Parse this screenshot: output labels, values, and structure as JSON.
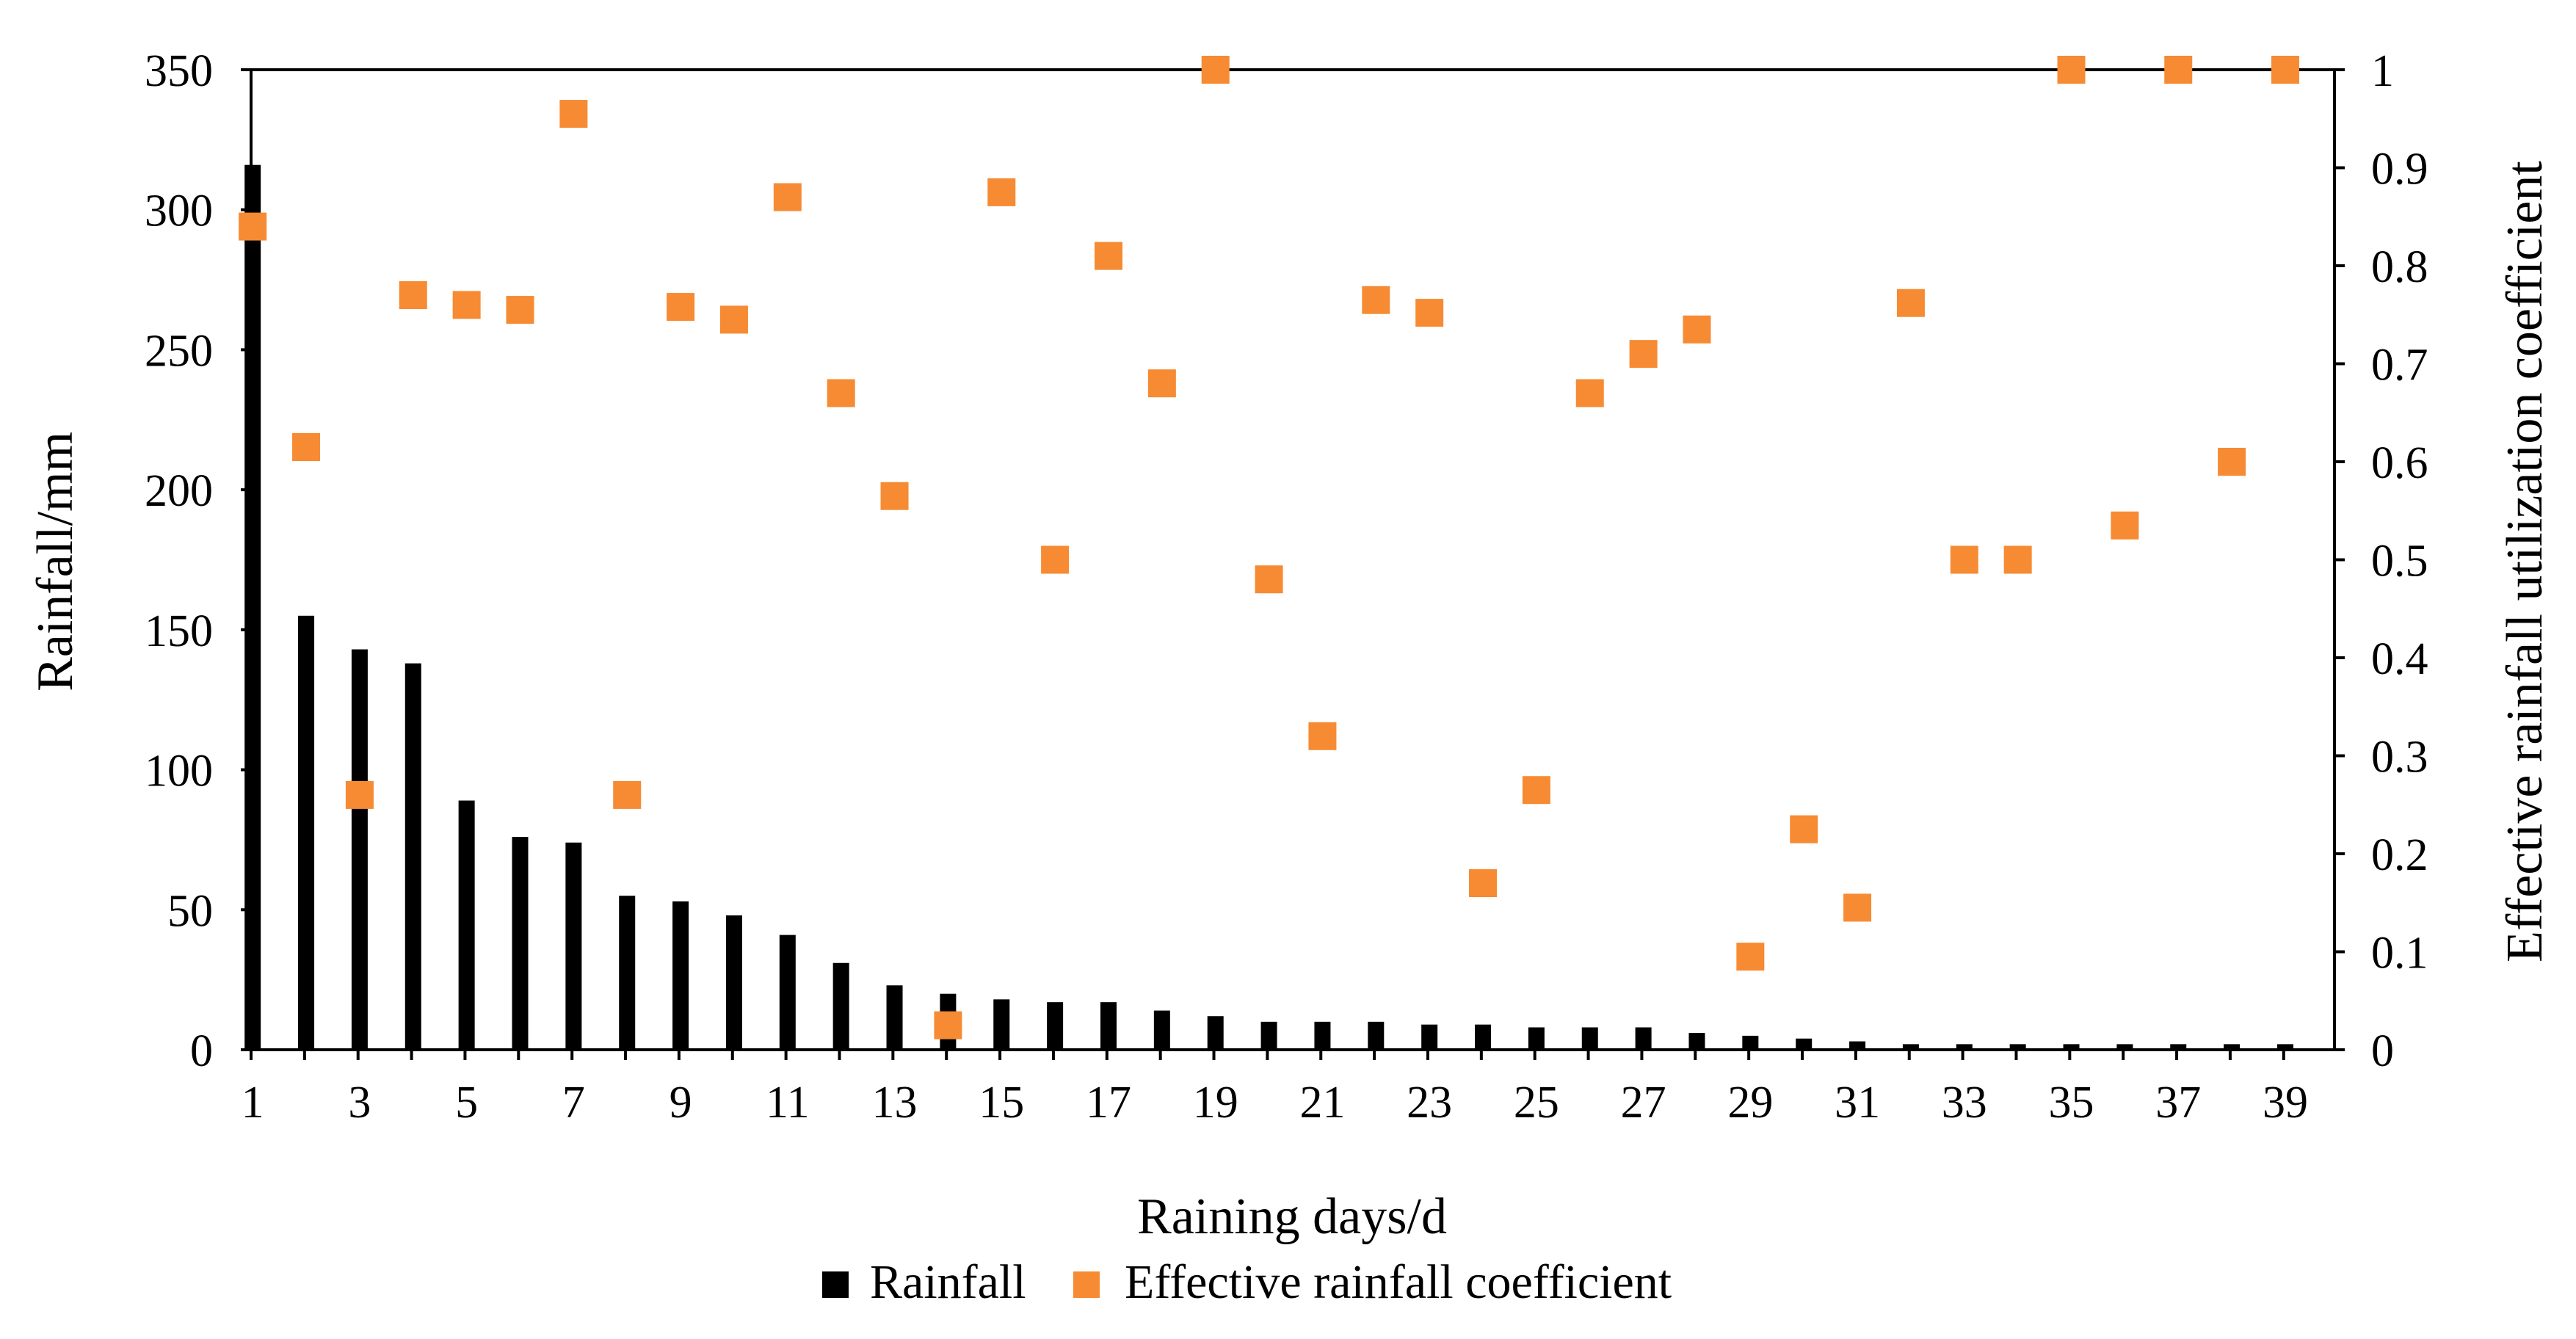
{
  "chart_data": {
    "type": "bar+scatter",
    "title": "",
    "xlabel": "Raining days/d",
    "ylabel": "Rainfall/mm",
    "y2label": "Effective rainfall utilization coefficient",
    "ylim": [
      0,
      350
    ],
    "y2lim": [
      0,
      1
    ],
    "yticks": [
      "0",
      "50",
      "100",
      "150",
      "200",
      "250",
      "300",
      "350"
    ],
    "y2ticks": [
      "0",
      "0.1",
      "0.2",
      "0.3",
      "0.4",
      "0.5",
      "0.6",
      "0.7",
      "0.8",
      "0.9",
      "1"
    ],
    "x": [
      1,
      2,
      3,
      4,
      5,
      6,
      7,
      8,
      9,
      10,
      11,
      12,
      13,
      14,
      15,
      16,
      17,
      18,
      19,
      20,
      21,
      22,
      23,
      24,
      25,
      26,
      27,
      28,
      29,
      30,
      31,
      32,
      33,
      34,
      35,
      36,
      37,
      38,
      39
    ],
    "xtick_labels": [
      "1",
      "3",
      "5",
      "7",
      "9",
      "11",
      "13",
      "15",
      "17",
      "19",
      "21",
      "23",
      "25",
      "27",
      "29",
      "31",
      "33",
      "35",
      "37",
      "39"
    ],
    "series": [
      {
        "name": "Rainfall",
        "type": "bar",
        "axis": "left",
        "color": "#000000",
        "values": [
          316,
          155,
          143,
          138,
          89,
          76,
          74,
          55,
          53,
          48,
          41,
          31,
          23,
          20,
          18,
          17,
          17,
          14,
          12,
          10,
          10,
          10,
          9,
          9,
          8,
          8,
          8,
          6,
          5,
          4,
          3,
          2,
          2,
          2,
          2,
          2,
          2,
          2,
          2
        ]
      },
      {
        "name": "Effective rainfall coefficient",
        "type": "scatter",
        "axis": "right",
        "marker": "square",
        "color": "#f68b33",
        "values": [
          0.84,
          0.615,
          0.26,
          0.77,
          0.76,
          0.755,
          0.955,
          0.26,
          0.758,
          0.745,
          0.87,
          0.67,
          0.565,
          0.025,
          0.875,
          0.5,
          0.81,
          0.68,
          1.0,
          0.48,
          0.32,
          0.765,
          0.752,
          0.17,
          0.265,
          0.67,
          0.71,
          0.735,
          0.095,
          0.225,
          0.145,
          0.762,
          0.5,
          0.5,
          1.0,
          0.535,
          1.0,
          0.6,
          1.0
        ]
      }
    ],
    "legend_position": "bottom",
    "grid": false
  }
}
